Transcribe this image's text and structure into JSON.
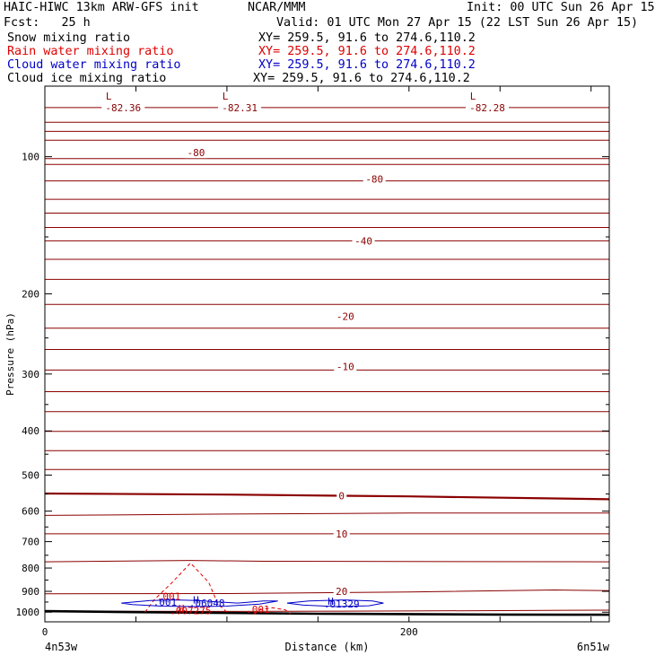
{
  "header": {
    "model": "HAIC-HIWC 13km ARW-GFS init",
    "org": "NCAR/MMM",
    "init": "Init: 00 UTC Sun 26 Apr 15",
    "fcst": "Fcst:   25 h",
    "valid": "Valid: 01 UTC Mon 27 Apr 15 (22 LST Sun 26 Apr 15)"
  },
  "fields": [
    {
      "name": "Snow mixing ratio",
      "xy": "XY= 259.5, 91.6 to 274.6,110.2",
      "color": "#000000"
    },
    {
      "name": "Rain water mixing ratio",
      "xy": "XY= 259.5, 91.6 to 274.6,110.2",
      "color": "#e00000"
    },
    {
      "name": "Cloud water mixing ratio",
      "xy": "XY= 259.5, 91.6 to 274.6,110.2",
      "color": "#0000c8"
    },
    {
      "name": "Cloud ice mixing ratio",
      "xy": "XY= 259.5, 91.6 to 274.6,110.2",
      "color": "#000000"
    }
  ],
  "chart_data": {
    "type": "contour",
    "ylabel": "Pressure (hPa)",
    "xlabel": "Distance (km)",
    "x_left_label": "4n53w",
    "x_right_label": "6n51w",
    "xlim": [
      0,
      310
    ],
    "ylim": [
      1050,
      70
    ],
    "y_reversed": true,
    "x_ticks": [
      0,
      200
    ],
    "y_ticks": [
      100,
      200,
      300,
      400,
      500,
      600,
      700,
      800,
      900,
      1000
    ],
    "temperature_contours": [
      {
        "x": [
          0,
          310
        ],
        "p": [
          78,
          78
        ]
      },
      {
        "x": [
          0,
          310
        ],
        "p": [
          84,
          84
        ]
      },
      {
        "x": [
          0,
          310
        ],
        "p": [
          88,
          88
        ]
      },
      {
        "x": [
          0,
          310
        ],
        "p": [
          92,
          92
        ]
      },
      {
        "x": [
          0,
          310
        ],
        "p": [
          101,
          101
        ]
      },
      {
        "x": [
          0,
          310
        ],
        "p": [
          104,
          104
        ]
      },
      {
        "x": [
          0,
          310
        ],
        "p": [
          113,
          113
        ]
      },
      {
        "x": [
          0,
          310
        ],
        "p": [
          124,
          124
        ]
      },
      {
        "x": [
          0,
          310
        ],
        "p": [
          133,
          133
        ]
      },
      {
        "x": [
          0,
          310
        ],
        "p": [
          143,
          143
        ]
      },
      {
        "x": [
          0,
          310
        ],
        "p": [
          153,
          153
        ]
      },
      {
        "x": [
          0,
          310
        ],
        "p": [
          168,
          168
        ]
      },
      {
        "x": [
          0,
          310
        ],
        "p": [
          186,
          186
        ]
      },
      {
        "x": [
          0,
          310
        ],
        "p": [
          211,
          211
        ]
      },
      {
        "x": [
          0,
          310
        ],
        "p": [
          238,
          238
        ]
      },
      {
        "x": [
          0,
          310
        ],
        "p": [
          265,
          265
        ]
      },
      {
        "x": [
          0,
          310
        ],
        "p": [
          294,
          294
        ]
      },
      {
        "x": [
          0,
          310
        ],
        "p": [
          328,
          328
        ]
      },
      {
        "x": [
          0,
          310
        ],
        "p": [
          363,
          363
        ]
      },
      {
        "x": [
          0,
          310
        ],
        "p": [
          401,
          401
        ]
      },
      {
        "x": [
          0,
          310
        ],
        "p": [
          442,
          442
        ]
      },
      {
        "x": [
          0,
          310
        ],
        "p": [
          486,
          486
        ]
      },
      {
        "x": [
          0,
          100,
          200,
          310
        ],
        "p": [
          549,
          552,
          557,
          565
        ]
      },
      {
        "x": [
          0,
          100,
          200,
          310
        ],
        "p": [
          613,
          609,
          606,
          606
        ]
      },
      {
        "x": [
          0,
          310
        ],
        "p": [
          673,
          673
        ]
      },
      {
        "x": [
          0,
          80,
          120,
          310
        ],
        "p": [
          775,
          770,
          773,
          775
        ]
      },
      {
        "x": [
          0,
          100,
          200,
          280,
          310
        ],
        "p": [
          911,
          910,
          903,
          894,
          897
        ]
      },
      {
        "x": [
          0,
          100,
          200,
          310
        ],
        "p": [
          995,
          996,
          994,
          990
        ]
      }
    ],
    "bold_contour_index": 22,
    "temperature_labels": [
      {
        "text": "-80",
        "x": 83,
        "p": 98
      },
      {
        "text": "-80",
        "x": 181,
        "p": 112
      },
      {
        "text": "-40",
        "x": 175,
        "p": 153
      },
      {
        "text": "-20",
        "x": 165,
        "p": 224
      },
      {
        "text": "-10",
        "x": 165,
        "p": 289
      },
      {
        "text": "0",
        "x": 163,
        "p": 555
      },
      {
        "text": "10",
        "x": 163,
        "p": 673
      },
      {
        "text": "20",
        "x": 163,
        "p": 900
      }
    ],
    "lows": [
      {
        "label": "L",
        "value": "-82.36",
        "x": 43
      },
      {
        "label": "L",
        "value": "-82.31",
        "x": 107
      },
      {
        "label": "L",
        "value": "-82.28",
        "x": 243
      }
    ],
    "terrain": {
      "x": [
        0,
        50,
        100,
        150,
        200,
        250,
        310
      ],
      "p": [
        995,
        1000,
        1004,
        1008,
        1010,
        1012,
        1013
      ]
    },
    "rain_contours": [
      {
        "x": [
          55,
          60,
          70,
          80,
          90,
          95,
          100
        ],
        "p": [
          1000,
          940,
          860,
          780,
          860,
          960,
          1000
        ]
      },
      {
        "x": [
          115,
          118,
          125,
          132,
          135
        ],
        "p": [
          1010,
          988,
          978,
          988,
          1008
        ]
      }
    ],
    "rain_labels": [
      {
        "text": ".001",
        "x": 68,
        "p": 922
      },
      {
        "text": "H",
        "x": 75,
        "p": 980
      },
      {
        "text": ".007275",
        "x": 80,
        "p": 992
      },
      {
        "text": ".001",
        "x": 117,
        "p": 985
      }
    ],
    "cloud_water_contours": [
      {
        "x": [
          42,
          58,
          72,
          84,
          95,
          106,
          120,
          128,
          118,
          100,
          82,
          64,
          48,
          42
        ],
        "p": [
          955,
          943,
          940,
          943,
          950,
          955,
          945,
          945,
          960,
          970,
          972,
          970,
          962,
          955
        ]
      },
      {
        "x": [
          133,
          145,
          165,
          180,
          186,
          178,
          160,
          142,
          133
        ],
        "p": [
          955,
          945,
          940,
          945,
          955,
          968,
          972,
          965,
          955
        ]
      }
    ],
    "cloud_water_labels": [
      {
        "text": ".001",
        "x": 66,
        "p": 951
      },
      {
        "text": "H",
        "x": 83,
        "p": 940
      },
      {
        "text": ".06048",
        "x": 89,
        "p": 955
      },
      {
        "text": "H",
        "x": 157,
        "p": 945
      },
      {
        "text": ".01329",
        "x": 163,
        "p": 960
      }
    ],
    "colors": {
      "temperature": "#8b0000",
      "rain": "#e00000",
      "cloud_water": "#0000c8",
      "terrain": "#000000"
    }
  }
}
